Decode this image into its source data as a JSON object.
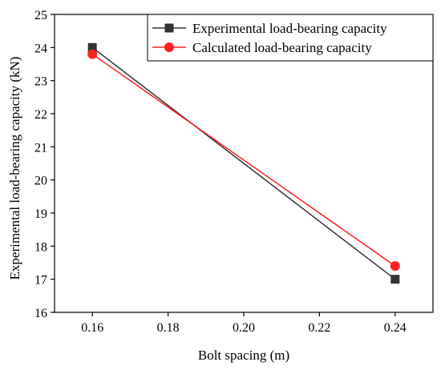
{
  "chart_data": {
    "type": "line",
    "title": "",
    "xlabel": "Bolt spacing (m)",
    "ylabel": "Experimental load-bearing capacity (kN)",
    "xlim": [
      0.15,
      0.25
    ],
    "ylim": [
      16,
      25
    ],
    "xticks": [
      "0.16",
      "0.18",
      "0.20",
      "0.22",
      "0.24"
    ],
    "xtick_values": [
      0.16,
      0.18,
      0.2,
      0.22,
      0.24
    ],
    "yticks": [
      "16",
      "17",
      "18",
      "19",
      "20",
      "21",
      "22",
      "23",
      "24",
      "25"
    ],
    "ytick_values": [
      16,
      17,
      18,
      19,
      20,
      21,
      22,
      23,
      24,
      25
    ],
    "grid": false,
    "legend_position": "top-right",
    "series": [
      {
        "name": "Experimental load-bearing capacity",
        "marker": "square",
        "color": "#333333",
        "x": [
          0.16,
          0.24
        ],
        "y": [
          24.0,
          17.0
        ]
      },
      {
        "name": "Calculated load-bearing capacity",
        "marker": "circle",
        "color": "#ff2020",
        "x": [
          0.16,
          0.24
        ],
        "y": [
          23.8,
          17.4
        ]
      }
    ]
  }
}
